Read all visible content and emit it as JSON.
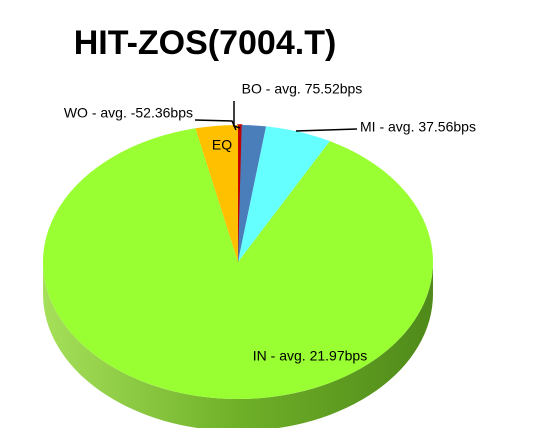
{
  "chart_data": {
    "type": "pie",
    "title": "HIT-ZOS(7004.T)",
    "categories": [
      "EQ",
      "BO - avg. 75.52bps",
      "MI - avg. 37.56bps",
      "IN - avg. 21.97bps",
      "WO - avg. -52.36bps"
    ],
    "values": [
      0.3,
      2,
      5.5,
      88.7,
      3.5
    ],
    "colors": [
      "#c00000",
      "#4a7ebb",
      "#66ffff",
      "#99ff33",
      "#ffc000"
    ]
  }
}
